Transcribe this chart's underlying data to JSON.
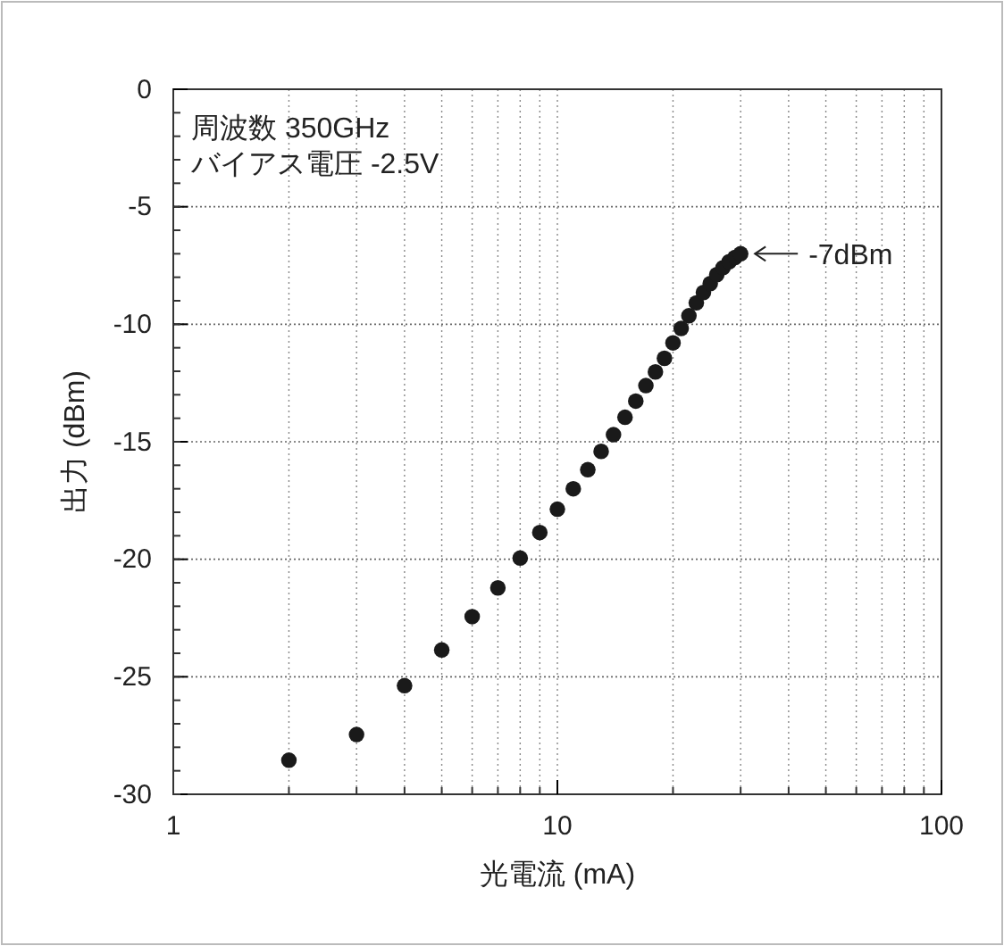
{
  "chart_data": {
    "type": "scatter",
    "xlabel": "光電流 (mA)",
    "ylabel": "出力 (dBm)",
    "x": [
      2,
      3,
      4,
      5,
      6,
      7,
      8,
      9,
      10,
      11,
      12,
      13,
      14,
      15,
      16,
      17,
      18,
      19,
      20,
      21,
      22,
      23,
      24,
      25,
      26,
      27,
      28,
      29,
      30
    ],
    "series": [
      {
        "color": "#1a1a1a",
        "values": [
          -28.55,
          -27.46,
          -25.38,
          -23.86,
          -22.44,
          -21.22,
          -19.95,
          -18.86,
          -17.87,
          -17.0,
          -16.19,
          -15.41,
          -14.7,
          -13.96,
          -13.27,
          -12.61,
          -12.03,
          -11.45,
          -10.79,
          -10.18,
          -9.64,
          -9.09,
          -8.65,
          -8.27,
          -7.89,
          -7.59,
          -7.34,
          -7.16,
          -7.0
        ]
      }
    ],
    "log": "x",
    "xlim": [
      1,
      100
    ],
    "xticks": [
      1,
      10,
      100
    ],
    "ylim": [
      -30,
      0
    ],
    "yticks": [
      -30,
      -25,
      -20,
      -15,
      -10,
      -5,
      0
    ],
    "grid": true,
    "marker": "circle",
    "annotations": [
      "周波数 350GHz",
      "バイアス電圧 -2.5V",
      {
        "text": "-7dBm",
        "x": 30,
        "y": -7
      }
    ]
  }
}
